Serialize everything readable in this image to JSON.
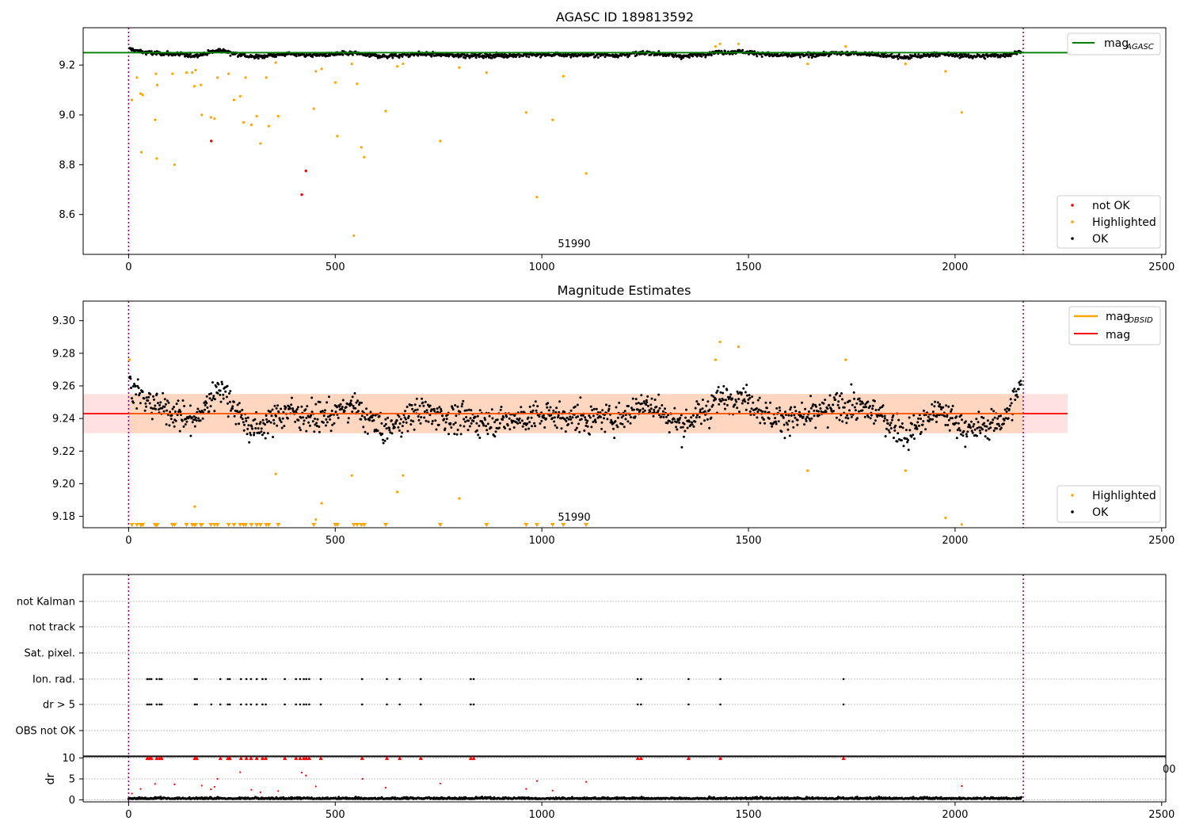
{
  "figure": {
    "title": "AGASC ID 189813592",
    "obsid_marker_label": "51990",
    "obsid_marker_label_2": "51990",
    "edge_label": "00",
    "colors": {
      "ok": "#000000",
      "highlighted": "#ffa500",
      "not_ok": "#ff0000",
      "agasc_line": "#008000",
      "mag_line": "#ff0000",
      "obsid_line": "#ffa500",
      "band": "#ffc8c8",
      "band_inner": "#ffd2b4",
      "boundary": "#800080",
      "grid": "#b0b0b0"
    }
  },
  "chart_data": [
    {
      "type": "scatter",
      "title": "",
      "ylim": [
        8.44,
        9.35
      ],
      "xlim": [
        -110,
        2510
      ],
      "yticks": [
        "8.6",
        "8.8",
        "9.0",
        "9.2"
      ],
      "xticks": [
        "0",
        "500",
        "1000",
        "1500",
        "2000",
        "2500"
      ],
      "mag_agasc": 9.25,
      "obsid_boundaries": [
        0,
        2165
      ],
      "series": [
        {
          "name": "not OK",
          "points": [
            [
              200,
              8.895
            ],
            [
              419,
              8.68
            ],
            [
              429,
              8.775
            ]
          ]
        },
        {
          "name": "Highlighted",
          "points": [
            [
              8,
              9.06
            ],
            [
              20,
              9.15
            ],
            [
              29,
              9.085
            ],
            [
              31,
              8.85
            ],
            [
              34,
              9.08
            ],
            [
              64,
              8.98
            ],
            [
              66,
              9.165
            ],
            [
              68,
              8.825
            ],
            [
              69,
              9.12
            ],
            [
              106,
              9.165
            ],
            [
              111,
              8.8
            ],
            [
              140,
              9.17
            ],
            [
              154,
              9.17
            ],
            [
              159,
              9.115
            ],
            [
              162,
              9.18
            ],
            [
              175,
              9.12
            ],
            [
              177,
              9.0
            ],
            [
              199,
              8.99
            ],
            [
              208,
              8.985
            ],
            [
              215,
              9.15
            ],
            [
              242,
              9.165
            ],
            [
              255,
              9.06
            ],
            [
              270,
              9.075
            ],
            [
              278,
              8.97
            ],
            [
              283,
              9.15
            ],
            [
              297,
              8.96
            ],
            [
              310,
              8.995
            ],
            [
              319,
              8.885
            ],
            [
              333,
              9.15
            ],
            [
              339,
              8.955
            ],
            [
              356,
              9.21
            ],
            [
              362,
              8.995
            ],
            [
              448,
              9.025
            ],
            [
              453,
              9.175
            ],
            [
              467,
              9.185
            ],
            [
              500,
              9.13
            ],
            [
              505,
              8.915
            ],
            [
              540,
              9.205
            ],
            [
              545,
              8.515
            ],
            [
              553,
              9.125
            ],
            [
              563,
              8.87
            ],
            [
              570,
              8.83
            ],
            [
              622,
              9.015
            ],
            [
              650,
              9.195
            ],
            [
              664,
              9.205
            ],
            [
              754,
              8.895
            ],
            [
              800,
              9.19
            ],
            [
              866,
              9.17
            ],
            [
              962,
              9.01
            ],
            [
              988,
              8.67
            ],
            [
              1026,
              8.98
            ],
            [
              1052,
              9.155
            ],
            [
              1107,
              8.765
            ],
            [
              1420,
              9.275
            ],
            [
              1431,
              9.285
            ],
            [
              1476,
              9.285
            ],
            [
              1643,
              9.205
            ],
            [
              1735,
              9.275
            ],
            [
              1880,
              9.205
            ],
            [
              1977,
              9.175
            ],
            [
              2016,
              9.01
            ]
          ]
        },
        {
          "name": "OK",
          "summary": "dense series",
          "count": 1450,
          "points": [
            [
              2,
              9.265
            ],
            [
              40,
              9.25
            ],
            [
              100,
              9.245
            ],
            [
              160,
              9.238
            ],
            [
              220,
              9.26
            ],
            [
              300,
              9.232
            ],
            [
              380,
              9.245
            ],
            [
              460,
              9.24
            ],
            [
              540,
              9.248
            ],
            [
              620,
              9.235
            ],
            [
              700,
              9.245
            ],
            [
              780,
              9.24
            ],
            [
              860,
              9.238
            ],
            [
              940,
              9.24
            ],
            [
              1020,
              9.242
            ],
            [
              1100,
              9.24
            ],
            [
              1180,
              9.24
            ],
            [
              1260,
              9.25
            ],
            [
              1340,
              9.235
            ],
            [
              1420,
              9.25
            ],
            [
              1480,
              9.255
            ],
            [
              1560,
              9.24
            ],
            [
              1640,
              9.24
            ],
            [
              1720,
              9.248
            ],
            [
              1800,
              9.245
            ],
            [
              1880,
              9.23
            ],
            [
              1960,
              9.245
            ],
            [
              2040,
              9.235
            ],
            [
              2120,
              9.24
            ],
            [
              2160,
              9.255
            ]
          ]
        }
      ],
      "legend": [
        {
          "label": "mag",
          "sub": "AGASC"
        },
        {
          "label": "not OK"
        },
        {
          "label": "Highlighted"
        },
        {
          "label": "OK"
        }
      ]
    },
    {
      "type": "scatter",
      "title": "Magnitude Estimates",
      "ylim": [
        9.173,
        9.312
      ],
      "xlim": [
        -110,
        2510
      ],
      "yticks": [
        "9.18",
        "9.20",
        "9.22",
        "9.24",
        "9.26",
        "9.28",
        "9.30"
      ],
      "xticks": [
        "0",
        "500",
        "1000",
        "1500",
        "2000",
        "2500"
      ],
      "mag": 9.243,
      "mag_band": [
        9.231,
        9.255
      ],
      "obsid_boundaries": [
        0,
        2165
      ],
      "series": [
        {
          "name": "Highlighted",
          "points": [
            [
              2,
              9.276
            ],
            [
              160,
              9.186
            ],
            [
              356,
              9.206
            ],
            [
              453,
              9.178
            ],
            [
              467,
              9.188
            ],
            [
              540,
              9.205
            ],
            [
              650,
              9.195
            ],
            [
              664,
              9.205
            ],
            [
              800,
              9.191
            ],
            [
              1420,
              9.276
            ],
            [
              1431,
              9.287
            ],
            [
              1476,
              9.284
            ],
            [
              1643,
              9.208
            ],
            [
              1735,
              9.276
            ],
            [
              1880,
              9.208
            ],
            [
              1977,
              9.179
            ],
            [
              2016,
              9.175
            ]
          ],
          "below_axis_x": [
            8,
            20,
            29,
            31,
            34,
            64,
            66,
            68,
            69,
            106,
            111,
            140,
            154,
            159,
            162,
            175,
            177,
            199,
            208,
            215,
            242,
            255,
            270,
            278,
            283,
            297,
            310,
            319,
            333,
            339,
            362,
            448,
            500,
            505,
            545,
            553,
            563,
            570,
            622,
            754,
            866,
            962,
            988,
            1026,
            1052,
            1107
          ]
        },
        {
          "name": "OK",
          "summary": "dense series",
          "count": 1450,
          "points": [
            [
              2,
              9.262
            ],
            [
              40,
              9.25
            ],
            [
              100,
              9.245
            ],
            [
              160,
              9.238
            ],
            [
              220,
              9.26
            ],
            [
              300,
              9.232
            ],
            [
              380,
              9.245
            ],
            [
              460,
              9.24
            ],
            [
              540,
              9.248
            ],
            [
              620,
              9.232
            ],
            [
              700,
              9.245
            ],
            [
              780,
              9.24
            ],
            [
              860,
              9.238
            ],
            [
              940,
              9.24
            ],
            [
              1020,
              9.242
            ],
            [
              1100,
              9.24
            ],
            [
              1180,
              9.24
            ],
            [
              1260,
              9.25
            ],
            [
              1340,
              9.235
            ],
            [
              1420,
              9.25
            ],
            [
              1480,
              9.255
            ],
            [
              1560,
              9.24
            ],
            [
              1640,
              9.24
            ],
            [
              1720,
              9.248
            ],
            [
              1800,
              9.245
            ],
            [
              1880,
              9.23
            ],
            [
              1960,
              9.245
            ],
            [
              2040,
              9.232
            ],
            [
              2120,
              9.24
            ],
            [
              2160,
              9.26
            ]
          ]
        }
      ],
      "legend": [
        {
          "label": "mag",
          "sub": "OBSID"
        },
        {
          "label": "mag"
        },
        {
          "label": "Highlighted"
        },
        {
          "label": "OK"
        }
      ]
    },
    {
      "type": "scatter",
      "title": "",
      "xlim": [
        -110,
        2510
      ],
      "categories": [
        "not Kalman",
        "not track",
        "Sat. pixel.",
        "Ion. rad.",
        "dr > 5",
        "OBS not OK"
      ],
      "flags": {
        "Ion. rad.": [
          45,
          50,
          55,
          68,
          75,
          80,
          160,
          165,
          222,
          240,
          245,
          272,
          285,
          296,
          310,
          324,
          332,
          378,
          405,
          415,
          424,
          430,
          437,
          465,
          565,
          625,
          656,
          707,
          828,
          835,
          1232,
          1240,
          1355,
          1432,
          1730
        ],
        "dr > 5": [
          45,
          50,
          55,
          68,
          75,
          80,
          160,
          165,
          200,
          222,
          240,
          245,
          272,
          285,
          296,
          310,
          324,
          332,
          378,
          405,
          415,
          424,
          430,
          437,
          465,
          565,
          625,
          656,
          707,
          828,
          835,
          1232,
          1240,
          1355,
          1432,
          1730
        ]
      }
    },
    {
      "type": "scatter",
      "title": "",
      "ylabel": "dr",
      "ylim": [
        -0.5,
        10.5
      ],
      "xlim": [
        -110,
        2510
      ],
      "yticks": [
        "0",
        "5",
        "10"
      ],
      "xticks": [
        "0",
        "500",
        "1000",
        "1500",
        "2000",
        "2500"
      ],
      "series": [
        {
          "name": "dr > 5",
          "points_at_y": 10,
          "x": [
            45,
            50,
            55,
            68,
            75,
            80,
            160,
            165,
            222,
            240,
            245,
            272,
            285,
            296,
            310,
            324,
            332,
            378,
            405,
            415,
            424,
            430,
            437,
            465,
            565,
            625,
            656,
            707,
            828,
            835,
            1232,
            1240,
            1355,
            1432,
            1730
          ]
        },
        {
          "name": "dr",
          "points": [
            [
              8,
              1.5
            ],
            [
              29,
              2.6
            ],
            [
              64,
              3.8
            ],
            [
              111,
              3.7
            ],
            [
              177,
              3.4
            ],
            [
              199,
              2.5
            ],
            [
              208,
              3.1
            ],
            [
              215,
              5.0
            ],
            [
              270,
              6.6
            ],
            [
              297,
              2.4
            ],
            [
              319,
              1.8
            ],
            [
              362,
              2.1
            ],
            [
              419,
              6.5
            ],
            [
              429,
              5.8
            ],
            [
              453,
              3.2
            ],
            [
              566,
              5.0
            ],
            [
              622,
              2.9
            ],
            [
              754,
              3.9
            ],
            [
              962,
              2.6
            ],
            [
              988,
              4.5
            ],
            [
              1026,
              2.2
            ],
            [
              1107,
              4.3
            ],
            [
              2016,
              3.3
            ]
          ]
        }
      ]
    }
  ]
}
